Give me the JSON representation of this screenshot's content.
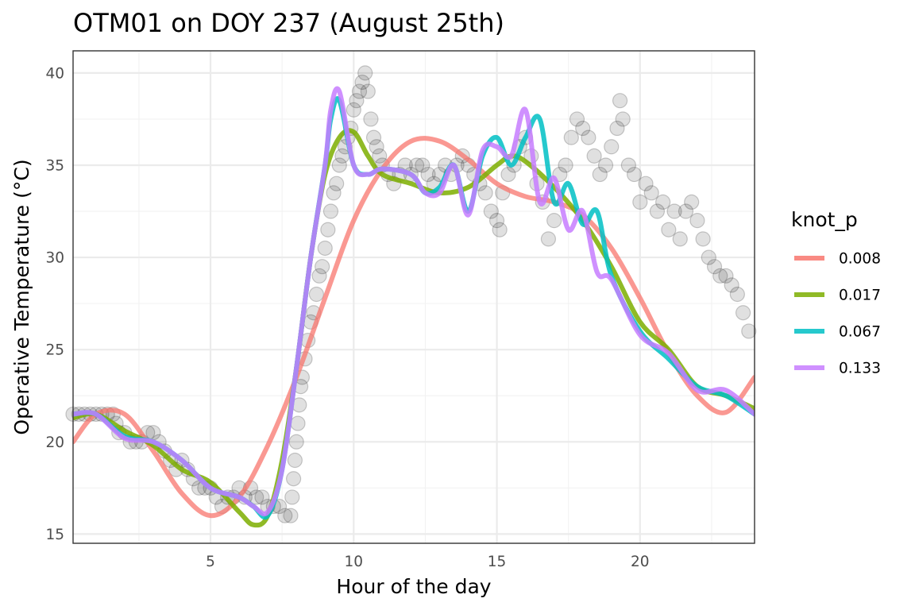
{
  "chart_data": {
    "type": "line",
    "title": "OTM01 on DOY 237 (August 25th)",
    "xlabel": "Hour of the day",
    "ylabel": "Operative Temperature (°C)",
    "xlim": [
      0.2,
      24
    ],
    "ylim": [
      14.5,
      41.2
    ],
    "x_ticks": [
      5,
      10,
      15,
      20
    ],
    "y_ticks": [
      15,
      20,
      25,
      30,
      35,
      40
    ],
    "x_tick_labels": [
      "5",
      "10",
      "15",
      "20"
    ],
    "y_tick_labels": [
      "15",
      "20",
      "25",
      "30",
      "35",
      "40"
    ],
    "grid": true,
    "legend": {
      "title": "knot_p",
      "position": "right"
    },
    "observed_points": [
      [
        0.2,
        21.5
      ],
      [
        0.4,
        21.5
      ],
      [
        0.6,
        21.5
      ],
      [
        0.8,
        21.5
      ],
      [
        1.0,
        21.5
      ],
      [
        1.2,
        21.5
      ],
      [
        1.4,
        21.5
      ],
      [
        1.6,
        21.5
      ],
      [
        1.7,
        21
      ],
      [
        1.8,
        20.5
      ],
      [
        2.0,
        20.5
      ],
      [
        2.2,
        20
      ],
      [
        2.4,
        20
      ],
      [
        2.6,
        20
      ],
      [
        2.8,
        20.5
      ],
      [
        3.0,
        20.5
      ],
      [
        3.2,
        20
      ],
      [
        3.4,
        19.5
      ],
      [
        3.6,
        19
      ],
      [
        3.8,
        18.5
      ],
      [
        4.0,
        19
      ],
      [
        4.2,
        18.5
      ],
      [
        4.4,
        18
      ],
      [
        4.6,
        17.5
      ],
      [
        4.8,
        17.5
      ],
      [
        5.0,
        17.5
      ],
      [
        5.2,
        17
      ],
      [
        5.4,
        16.5
      ],
      [
        5.6,
        17
      ],
      [
        5.8,
        17
      ],
      [
        6.0,
        17.5
      ],
      [
        6.2,
        17
      ],
      [
        6.4,
        17.5
      ],
      [
        6.6,
        17
      ],
      [
        6.8,
        17
      ],
      [
        7.0,
        16.5
      ],
      [
        7.2,
        16.5
      ],
      [
        7.4,
        16.5
      ],
      [
        7.6,
        16
      ],
      [
        7.8,
        16
      ],
      [
        7.85,
        17
      ],
      [
        7.9,
        18
      ],
      [
        7.95,
        19
      ],
      [
        8.0,
        20
      ],
      [
        8.05,
        21
      ],
      [
        8.1,
        22
      ],
      [
        8.15,
        23
      ],
      [
        8.2,
        23.5
      ],
      [
        8.3,
        24.5
      ],
      [
        8.4,
        25.5
      ],
      [
        8.5,
        26.5
      ],
      [
        8.6,
        27
      ],
      [
        8.7,
        28
      ],
      [
        8.8,
        29
      ],
      [
        8.9,
        29.5
      ],
      [
        9.0,
        30.5
      ],
      [
        9.1,
        31.5
      ],
      [
        9.2,
        32.5
      ],
      [
        9.3,
        33.5
      ],
      [
        9.4,
        34
      ],
      [
        9.5,
        35
      ],
      [
        9.6,
        35.5
      ],
      [
        9.7,
        36
      ],
      [
        9.8,
        36.5
      ],
      [
        9.9,
        37
      ],
      [
        10.0,
        38
      ],
      [
        10.1,
        38.5
      ],
      [
        10.2,
        39
      ],
      [
        10.3,
        39.5
      ],
      [
        10.4,
        40
      ],
      [
        10.5,
        39
      ],
      [
        10.6,
        37.5
      ],
      [
        10.7,
        36.5
      ],
      [
        10.8,
        36
      ],
      [
        10.9,
        35.5
      ],
      [
        11.0,
        35
      ],
      [
        11.2,
        34.5
      ],
      [
        11.4,
        34
      ],
      [
        11.6,
        34.5
      ],
      [
        11.8,
        35
      ],
      [
        12.0,
        34.5
      ],
      [
        12.2,
        35
      ],
      [
        12.4,
        35
      ],
      [
        12.6,
        34.5
      ],
      [
        12.8,
        34
      ],
      [
        13.0,
        34.5
      ],
      [
        13.2,
        35
      ],
      [
        13.4,
        34.5
      ],
      [
        13.6,
        35
      ],
      [
        13.8,
        35.5
      ],
      [
        14.0,
        35
      ],
      [
        14.2,
        34.5
      ],
      [
        14.4,
        34
      ],
      [
        14.6,
        33.5
      ],
      [
        14.8,
        32.5
      ],
      [
        15.0,
        32
      ],
      [
        15.1,
        31.5
      ],
      [
        15.2,
        33.5
      ],
      [
        15.4,
        34.5
      ],
      [
        15.6,
        35
      ],
      [
        15.8,
        36
      ],
      [
        16.0,
        36.5
      ],
      [
        16.2,
        35.5
      ],
      [
        16.4,
        34
      ],
      [
        16.6,
        33
      ],
      [
        16.8,
        31
      ],
      [
        17.0,
        32
      ],
      [
        17.2,
        34.5
      ],
      [
        17.4,
        35
      ],
      [
        17.6,
        36.5
      ],
      [
        17.8,
        37.5
      ],
      [
        18.0,
        37
      ],
      [
        18.2,
        36.5
      ],
      [
        18.4,
        35.5
      ],
      [
        18.6,
        34.5
      ],
      [
        18.8,
        35
      ],
      [
        19.0,
        36
      ],
      [
        19.2,
        37
      ],
      [
        19.3,
        38.5
      ],
      [
        19.4,
        37.5
      ],
      [
        19.6,
        35
      ],
      [
        19.8,
        34.5
      ],
      [
        20.0,
        33
      ],
      [
        20.2,
        34
      ],
      [
        20.4,
        33.5
      ],
      [
        20.6,
        32.5
      ],
      [
        20.8,
        33
      ],
      [
        21.0,
        31.5
      ],
      [
        21.2,
        32.5
      ],
      [
        21.4,
        31
      ],
      [
        21.6,
        32.5
      ],
      [
        21.8,
        33
      ],
      [
        22.0,
        32
      ],
      [
        22.2,
        31
      ],
      [
        22.4,
        30
      ],
      [
        22.6,
        29.5
      ],
      [
        22.8,
        29
      ],
      [
        23.0,
        29
      ],
      [
        23.2,
        28.5
      ],
      [
        23.4,
        28
      ],
      [
        23.6,
        27
      ],
      [
        23.8,
        26
      ]
    ],
    "series": [
      {
        "name": "0.008",
        "color": "#f8766d",
        "x": [
          0.2,
          1,
          2,
          3,
          4,
          5,
          6,
          7,
          8,
          9,
          10,
          11,
          12,
          13,
          14,
          15,
          16,
          17,
          18,
          19,
          20,
          21,
          22,
          23,
          24
        ],
        "values": [
          20,
          21.5,
          21.5,
          19.5,
          17.2,
          16,
          17,
          19.8,
          23.5,
          27.8,
          32,
          34.8,
          36.3,
          36.3,
          35.3,
          34,
          33.3,
          33,
          32.3,
          30.5,
          27.8,
          24.8,
          22.5,
          21.6,
          23.5
        ]
      },
      {
        "name": "0.017",
        "color": "#7cae00",
        "x": [
          0.2,
          1,
          2,
          3,
          4,
          5,
          6,
          6.5,
          7,
          7.5,
          8,
          8.5,
          9,
          9.5,
          10,
          10.5,
          11,
          12,
          13,
          14,
          15,
          15.5,
          16,
          17,
          18,
          19,
          20,
          21,
          22,
          23,
          24
        ],
        "values": [
          21.3,
          21.5,
          20.6,
          19.8,
          18.5,
          17.8,
          16.2,
          15.5,
          16,
          19,
          24,
          30,
          34.5,
          36.5,
          36.8,
          35.5,
          34.5,
          34,
          33.5,
          33.8,
          35,
          35.5,
          35.2,
          33.8,
          32,
          29.5,
          26.5,
          25,
          23,
          22.5,
          21.8
        ]
      },
      {
        "name": "0.067",
        "color": "#00bfc4",
        "x": [
          0.2,
          1,
          2,
          3,
          4,
          5,
          6,
          6.5,
          7,
          7.5,
          8,
          8.5,
          9,
          9.2,
          9.5,
          10,
          10.5,
          11,
          12,
          12.5,
          13,
          13.5,
          14,
          14.5,
          15,
          15.5,
          16,
          16.5,
          17,
          17.5,
          18,
          18.5,
          19,
          20,
          21,
          22,
          23,
          24
        ],
        "values": [
          21.5,
          21.5,
          20.3,
          20,
          19,
          17.5,
          17,
          16.5,
          16,
          18.5,
          24,
          30,
          35,
          37.5,
          38.5,
          35,
          34.5,
          34.8,
          34.5,
          33.5,
          33.8,
          35,
          32.5,
          35.5,
          36.5,
          35,
          36.5,
          37.5,
          33,
          34,
          31.8,
          32.5,
          29,
          26,
          24.5,
          23,
          22.5,
          21.5
        ]
      },
      {
        "name": "0.133",
        "color": "#c77cff",
        "x": [
          0.2,
          1,
          2,
          3,
          4,
          5,
          6,
          6.5,
          7,
          7.5,
          8,
          8.5,
          9,
          9.2,
          9.5,
          10,
          10.5,
          11,
          12,
          12.5,
          13,
          13.5,
          14,
          14.5,
          15,
          15.5,
          16,
          16.5,
          17,
          17.5,
          18,
          18.5,
          19,
          20,
          21,
          22,
          23,
          24
        ],
        "values": [
          21.5,
          21.5,
          20.2,
          20,
          19,
          17.5,
          17,
          16.5,
          16.2,
          18.5,
          24,
          30,
          35,
          38,
          39,
          35,
          34.5,
          34.8,
          34.5,
          33.5,
          33.5,
          35,
          32.3,
          35.8,
          36,
          35.5,
          38,
          33,
          34.3,
          31.5,
          32.5,
          29.2,
          28.8,
          25.8,
          24.8,
          22.8,
          22.8,
          21.5
        ]
      }
    ]
  }
}
